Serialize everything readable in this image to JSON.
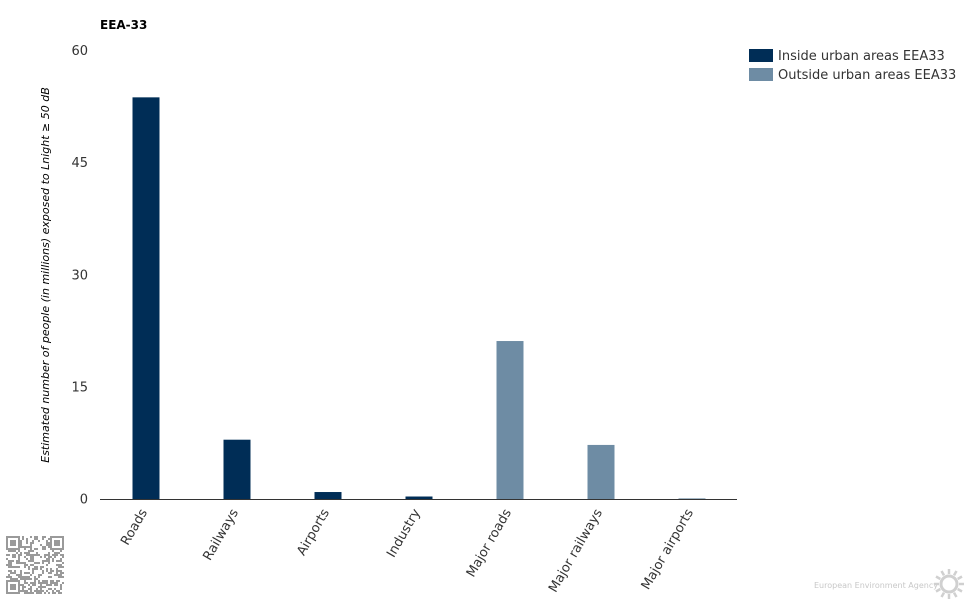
{
  "chart_data": {
    "type": "bar",
    "title": "EEA-33",
    "ylabel": "Estimated number of people (in millions) exposed to Lnight ≥ 50 dB",
    "xlabel": "",
    "ylim": [
      0,
      60
    ],
    "yticks": [
      "0",
      "15",
      "30",
      "45",
      "60"
    ],
    "ytick_values": [
      0,
      15,
      30,
      45,
      60
    ],
    "categories": [
      "Roads",
      "Railways",
      "Airports",
      "Industry",
      "Major roads",
      "Major railways",
      "Major airports"
    ],
    "series": [
      {
        "name": "Inside urban areas EEA33",
        "color": "#002d56",
        "values": [
          53.8,
          8.0,
          1.0,
          0.4,
          null,
          null,
          null
        ]
      },
      {
        "name": "Outside urban areas EEA33",
        "color": "#6e8ca4",
        "values": [
          null,
          null,
          null,
          null,
          21.2,
          7.3,
          0.15
        ]
      }
    ],
    "legend_position": "top-right",
    "grid": false
  },
  "footer": {
    "source": "European Environment Agency"
  }
}
